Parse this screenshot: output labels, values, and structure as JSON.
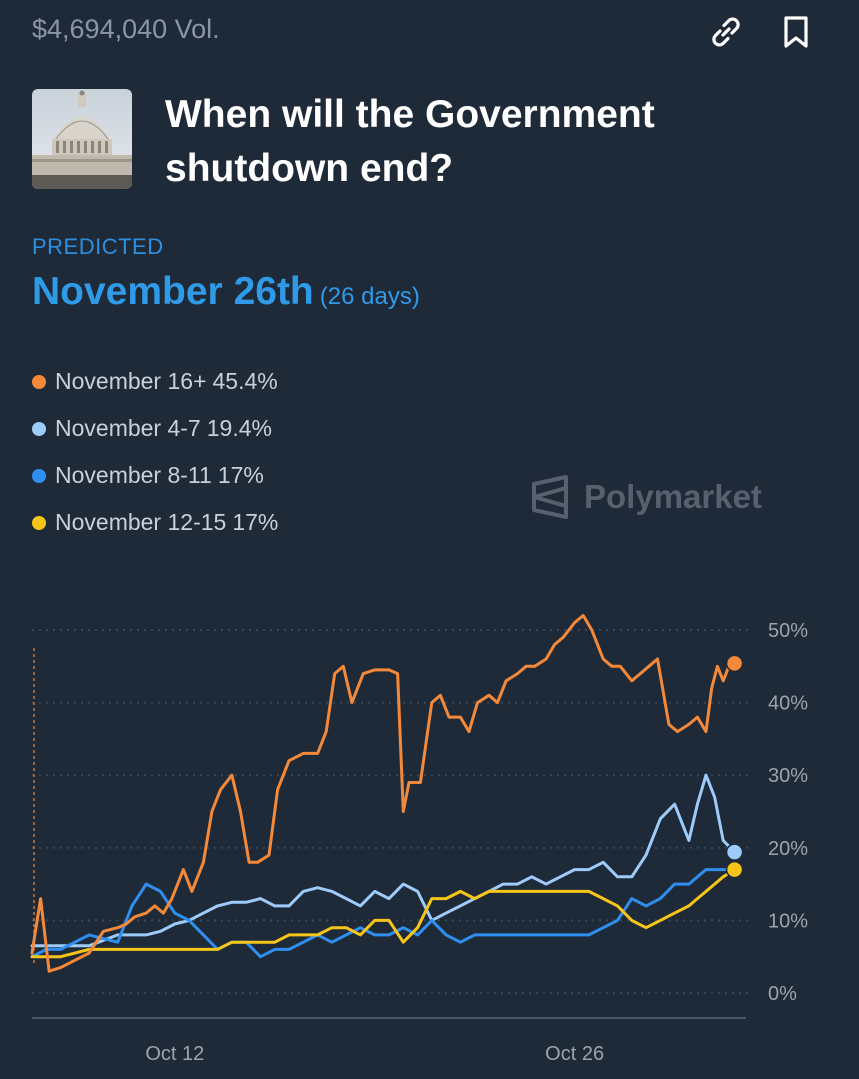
{
  "header": {
    "volume": "$4,694,040 Vol."
  },
  "market": {
    "title": "When will the Government shutdown end?",
    "predicted_label": "PREDICTED",
    "predicted_value": "November 26th",
    "predicted_days": "(26 days)"
  },
  "icons": {
    "link": "link-icon",
    "bookmark": "bookmark-icon",
    "logo": "polymarket-logo-icon"
  },
  "legend": [
    {
      "label": "November 16+",
      "pct": "45.4%",
      "color": "#f5893a"
    },
    {
      "label": "November 4-7",
      "pct": "19.4%",
      "color": "#9dcbfa"
    },
    {
      "label": "November 8-11",
      "pct": "17%",
      "color": "#2f8ff0"
    },
    {
      "label": "November 12-15",
      "pct": "17%",
      "color": "#f7c518"
    }
  ],
  "watermark": "Polymarket",
  "chart_data": {
    "type": "line",
    "y_tick_labels": [
      "50%",
      "40%",
      "30%",
      "20%",
      "10%",
      "0%"
    ],
    "y_ticks": [
      50,
      40,
      30,
      20,
      10,
      0
    ],
    "ylim": [
      0,
      50
    ],
    "x_tick_labels": [
      "Oct 12",
      "Oct 26"
    ],
    "x_ticks": [
      12,
      26
    ],
    "xlim": [
      7,
      32
    ],
    "grid": true,
    "series": [
      {
        "name": "November 16+",
        "color": "#f5893a",
        "x": [
          7.0,
          7.3,
          7.6,
          8.0,
          8.5,
          9.0,
          9.5,
          10.0,
          10.3,
          10.6,
          11.0,
          11.3,
          11.6,
          11.9,
          12.3,
          12.6,
          13.0,
          13.3,
          13.6,
          14.0,
          14.3,
          14.6,
          14.9,
          15.3,
          15.6,
          16.0,
          16.5,
          17.0,
          17.3,
          17.6,
          17.9,
          18.2,
          18.6,
          19.0,
          19.5,
          19.8,
          20.0,
          20.2,
          20.6,
          21.0,
          21.3,
          21.6,
          22.0,
          22.3,
          22.6,
          23.0,
          23.3,
          23.6,
          24.0,
          24.3,
          24.6,
          25.0,
          25.3,
          25.6,
          26.0,
          26.3,
          26.6,
          27.0,
          27.3,
          27.6,
          28.0,
          28.3,
          28.6,
          28.9,
          29.3,
          29.6,
          30.0,
          30.3,
          30.6,
          30.8,
          31.0,
          31.2,
          31.4,
          31.6
        ],
        "values": [
          5.5,
          13,
          3,
          3.5,
          4.5,
          5.5,
          8.5,
          9,
          9.5,
          10.5,
          11,
          12,
          11,
          13,
          17,
          14,
          18,
          25,
          28,
          30,
          25,
          18,
          18,
          19,
          28,
          32,
          33,
          33,
          36,
          44,
          45,
          40,
          44,
          44.5,
          44.5,
          44,
          25,
          29,
          29,
          40,
          41,
          38,
          38,
          36,
          40,
          41,
          40,
          43,
          44,
          45,
          45,
          46,
          48,
          49,
          51,
          52,
          50,
          46,
          45,
          45,
          43,
          44,
          45,
          46,
          37,
          36,
          37,
          38,
          36,
          42,
          45,
          43,
          45,
          45.4
        ]
      },
      {
        "name": "November 4-7",
        "color": "#9dcbfa",
        "x": [
          7.0,
          7.5,
          8.0,
          9.0,
          10.0,
          11.0,
          11.5,
          12.0,
          12.5,
          13.0,
          13.5,
          14.0,
          14.5,
          15.0,
          15.5,
          16.0,
          16.5,
          17.0,
          17.5,
          18.0,
          18.5,
          19.0,
          19.5,
          20.0,
          20.5,
          21.0,
          21.5,
          22.0,
          22.5,
          23.0,
          23.5,
          24.0,
          24.5,
          25.0,
          25.5,
          26.0,
          26.5,
          27.0,
          27.5,
          28.0,
          28.5,
          29.0,
          29.5,
          30.0,
          30.3,
          30.6,
          30.9,
          31.2,
          31.6
        ],
        "values": [
          6.5,
          6.5,
          6.5,
          6.5,
          8,
          8,
          8.5,
          9.5,
          10,
          11,
          12,
          12.5,
          12.5,
          13,
          12,
          12,
          14,
          14.5,
          14,
          13,
          12,
          14,
          13,
          15,
          14,
          10,
          11,
          12,
          13,
          14,
          15,
          15,
          16,
          15,
          16,
          17,
          17,
          18,
          16,
          16,
          19,
          24,
          26,
          21,
          26,
          30,
          27,
          21,
          19.4
        ]
      },
      {
        "name": "November 8-11",
        "color": "#2f8ff0",
        "x": [
          7.0,
          7.5,
          8.0,
          9.0,
          10.0,
          10.5,
          11.0,
          11.5,
          12.0,
          12.5,
          13.0,
          13.5,
          14.0,
          14.5,
          15.0,
          15.5,
          16.0,
          16.5,
          17.0,
          17.5,
          18.0,
          18.5,
          19.0,
          19.5,
          20.0,
          20.5,
          21.0,
          21.5,
          22.0,
          22.5,
          23.0,
          23.5,
          24.0,
          24.5,
          25.0,
          25.5,
          26.0,
          26.5,
          27.0,
          27.5,
          28.0,
          28.5,
          29.0,
          29.5,
          30.0,
          30.3,
          30.6,
          30.9,
          31.2,
          31.6
        ],
        "values": [
          5,
          6,
          6,
          8,
          7,
          12,
          15,
          14,
          11,
          10,
          8,
          6,
          7,
          7,
          5,
          6,
          6,
          7,
          8,
          7,
          8,
          9,
          8,
          8,
          9,
          8,
          10,
          8,
          7,
          8,
          8,
          8,
          8,
          8,
          8,
          8,
          8,
          8,
          9,
          10,
          13,
          12,
          13,
          15,
          15,
          16,
          17,
          17,
          17,
          17
        ]
      },
      {
        "name": "November 12-15",
        "color": "#f7c518",
        "x": [
          7.0,
          7.5,
          8.0,
          9.0,
          10.0,
          11.0,
          11.5,
          12.0,
          12.5,
          13.0,
          13.5,
          14.0,
          14.5,
          15.0,
          15.5,
          16.0,
          16.5,
          17.0,
          17.5,
          18.0,
          18.5,
          19.0,
          19.5,
          20.0,
          20.5,
          21.0,
          21.5,
          22.0,
          22.5,
          23.0,
          23.5,
          24.0,
          24.5,
          25.0,
          25.5,
          26.0,
          26.5,
          27.0,
          27.5,
          28.0,
          28.5,
          29.0,
          29.5,
          30.0,
          30.3,
          30.6,
          30.9,
          31.2,
          31.6
        ],
        "values": [
          5,
          5,
          5,
          6,
          6,
          6,
          6,
          6,
          6,
          6,
          6,
          7,
          7,
          7,
          7,
          8,
          8,
          8,
          9,
          9,
          8,
          10,
          10,
          7,
          9,
          13,
          13,
          14,
          13,
          14,
          14,
          14,
          14,
          14,
          14,
          14,
          14,
          13,
          12,
          10,
          9,
          10,
          11,
          12,
          13,
          14,
          15,
          16,
          17
        ]
      }
    ]
  }
}
